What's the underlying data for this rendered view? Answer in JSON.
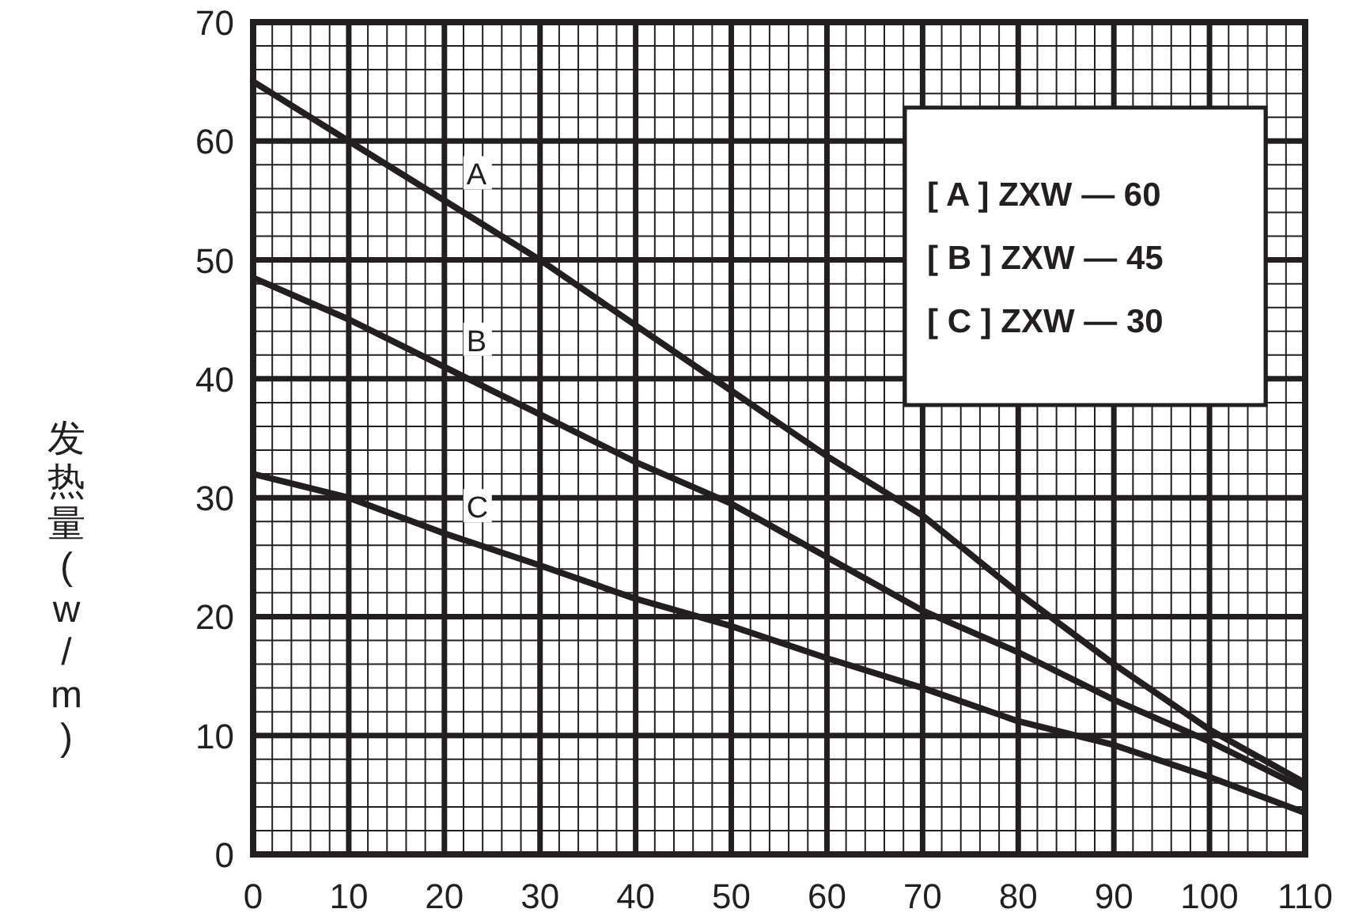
{
  "chart_data": {
    "type": "line",
    "ylabel": "发热量(w/m)",
    "x": [
      0,
      10,
      20,
      30,
      40,
      50,
      60,
      70,
      80,
      90,
      100,
      110
    ],
    "series": [
      {
        "name": "A",
        "color": "#231f20",
        "values": [
          65,
          60,
          55,
          50,
          44.5,
          39,
          33.5,
          28.5,
          22,
          16,
          10.5,
          6
        ]
      },
      {
        "name": "B",
        "color": "#231f20",
        "values": [
          48.5,
          45,
          41,
          37,
          33,
          29.5,
          25,
          20.5,
          17,
          13,
          9.5,
          5.5
        ]
      },
      {
        "name": "C",
        "color": "#231f20",
        "values": [
          32,
          30,
          27,
          24.3,
          21.5,
          19.2,
          16.5,
          14,
          11.2,
          9.2,
          6.5,
          3.5
        ]
      }
    ],
    "annotations": [
      "[ A ] ZXW — 60",
      "[ B ] ZXW — 45",
      "[ C ] ZXW — 30"
    ],
    "xlim": [
      0,
      110
    ],
    "ylim": [
      0,
      70
    ],
    "xticks": [
      0,
      10,
      20,
      30,
      40,
      50,
      60,
      70,
      80,
      90,
      100,
      110
    ],
    "yticks": [
      0,
      10,
      20,
      30,
      40,
      50,
      60,
      70
    ],
    "grid": true,
    "marker": "none",
    "line_style": "solid"
  }
}
